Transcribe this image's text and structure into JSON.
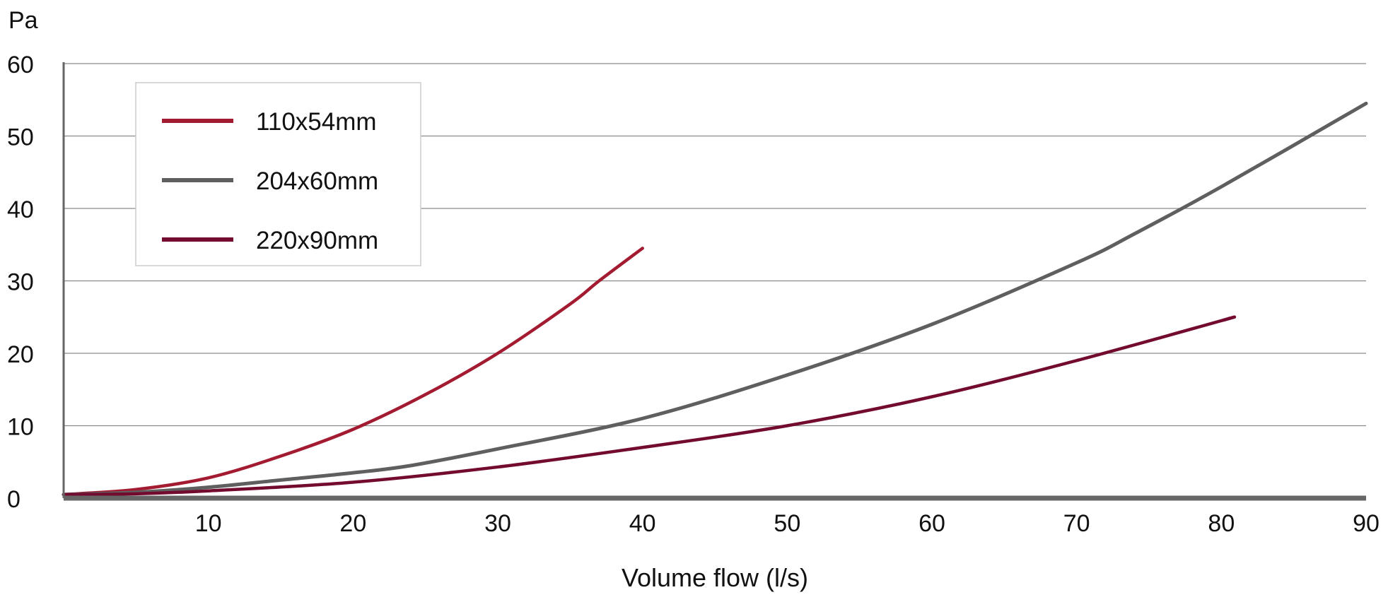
{
  "chart_data": {
    "type": "line",
    "title": "",
    "xlabel": "Volume flow (l/s)",
    "ylabel": "Pa",
    "xlim": [
      0,
      90
    ],
    "ylim": [
      0,
      60
    ],
    "xticks": [
      10,
      20,
      30,
      40,
      50,
      60,
      70,
      80,
      90
    ],
    "yticks": [
      0,
      10,
      20,
      30,
      40,
      50,
      60
    ],
    "grid": "horizontal",
    "legend_position": "top-left",
    "series": [
      {
        "name": "110x54mm",
        "color": "#a31b31",
        "x": [
          0,
          5,
          10,
          15,
          20,
          25,
          30,
          35,
          37,
          40
        ],
        "y": [
          0.5,
          1.2,
          2.8,
          5.8,
          9.5,
          14.3,
          20,
          26.8,
          30,
          34.5
        ]
      },
      {
        "name": "204x60mm",
        "color": "#5f5f5f",
        "x": [
          0,
          5,
          10,
          15,
          20,
          24,
          30,
          40,
          50,
          60,
          70,
          74,
          80,
          90
        ],
        "y": [
          0.5,
          0.8,
          1.5,
          2.5,
          3.5,
          4.5,
          6.8,
          11,
          17,
          24,
          32.5,
          36.5,
          43,
          54.5
        ]
      },
      {
        "name": "220x90mm",
        "color": "#730a2f",
        "x": [
          0,
          5,
          10,
          20,
          30,
          40,
          50,
          60,
          70,
          80,
          80.5
        ],
        "y": [
          0.5,
          0.6,
          1,
          2.2,
          4.3,
          7,
          10,
          14,
          19,
          24.5,
          24.8
        ]
      }
    ]
  }
}
